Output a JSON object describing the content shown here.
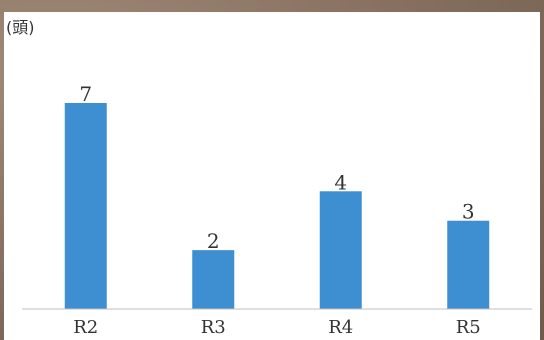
{
  "chart_data": {
    "type": "bar",
    "unit_label": "(頭)",
    "categories": [
      "R2",
      "R3",
      "R4",
      "R5"
    ],
    "values": [
      7,
      2,
      4,
      3
    ],
    "ylim": [
      0,
      7
    ],
    "grid": false,
    "bar_color": "#3d8fd1",
    "title": "",
    "xlabel": "",
    "ylabel": ""
  }
}
